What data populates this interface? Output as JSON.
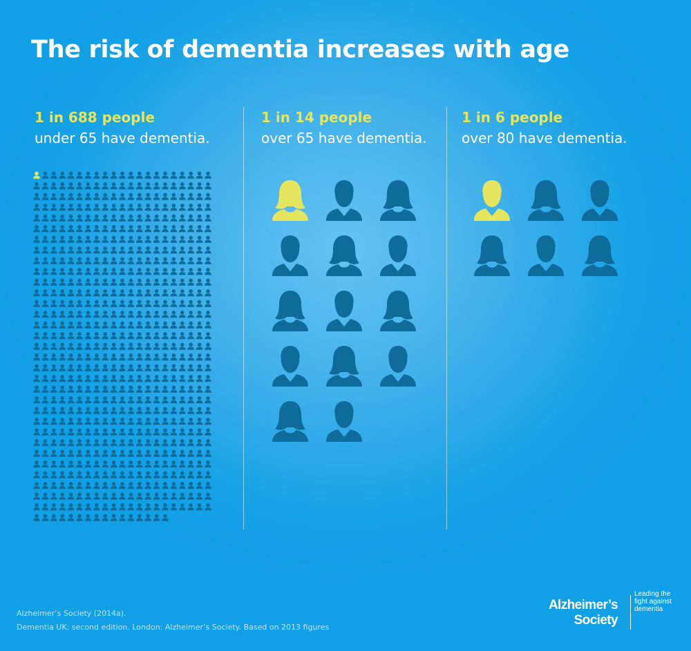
{
  "title": "The risk of dementia increases with age",
  "colors": {
    "background": "#2aa8e8",
    "person": "#0e6b9a",
    "highlight": "#e6e55e",
    "text": "#ffffff"
  },
  "panels": [
    {
      "headline": "1 in 688 people",
      "subtext": "under 65 have dementia.",
      "total": 688,
      "highlighted": 1
    },
    {
      "headline": "1 in 14 people",
      "subtext": "over 65 have dementia.",
      "total": 14,
      "highlighted": 1
    },
    {
      "headline": "1 in 6 people",
      "subtext": "over 80 have dementia.",
      "total": 6,
      "highlighted": 1
    }
  ],
  "source": {
    "line1": "Alzheimer’s Society (2014a).",
    "line2": "Dementia UK: second edition. London: Alzheimer’s Society. Based on 2013 figures"
  },
  "logo": {
    "name_line1": "Alzheimer’s",
    "name_line2": "Society",
    "tag_line1": "Leading the",
    "tag_line2": "fight against",
    "tag_line3": "dementia"
  }
}
